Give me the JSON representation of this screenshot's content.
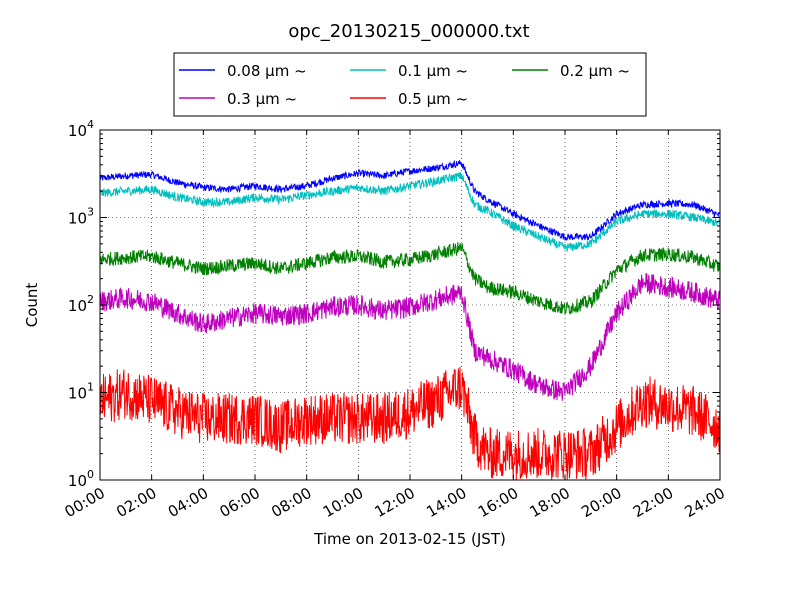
{
  "chart_data": {
    "type": "line",
    "title": "opc_20130215_000000.txt",
    "xlabel": "Time on 2013-02-15 (JST)",
    "ylabel": "Count",
    "y_scale": "log",
    "ylim": [
      1,
      10000
    ],
    "xlim": [
      0,
      24
    ],
    "x_unit": "hours",
    "grid": true,
    "legend_position": "top",
    "x_ticks": [
      {
        "value": 0,
        "label": "00:00"
      },
      {
        "value": 2,
        "label": "02:00"
      },
      {
        "value": 4,
        "label": "04:00"
      },
      {
        "value": 6,
        "label": "06:00"
      },
      {
        "value": 8,
        "label": "08:00"
      },
      {
        "value": 10,
        "label": "10:00"
      },
      {
        "value": 12,
        "label": "12:00"
      },
      {
        "value": 14,
        "label": "14:00"
      },
      {
        "value": 16,
        "label": "16:00"
      },
      {
        "value": 18,
        "label": "18:00"
      },
      {
        "value": 20,
        "label": "20:00"
      },
      {
        "value": 22,
        "label": "22:00"
      },
      {
        "value": 24,
        "label": "24:00"
      }
    ],
    "y_ticks": [
      {
        "value": 1,
        "base": "10",
        "exp": "0"
      },
      {
        "value": 10,
        "base": "10",
        "exp": "1"
      },
      {
        "value": 100,
        "base": "10",
        "exp": "2"
      },
      {
        "value": 1000,
        "base": "10",
        "exp": "3"
      },
      {
        "value": 10000,
        "base": "10",
        "exp": "4"
      }
    ],
    "x": [
      0,
      1,
      2,
      3,
      4,
      5,
      6,
      7,
      8,
      9,
      10,
      11,
      12,
      13,
      14,
      14.5,
      15,
      16,
      17,
      18,
      19,
      20,
      21,
      22,
      23,
      24
    ],
    "series": [
      {
        "name": "0.08 μm ~",
        "color": "#0000ff",
        "noise": 0.04,
        "values": [
          2800,
          3000,
          3100,
          2500,
          2200,
          2100,
          2300,
          2100,
          2300,
          2800,
          3200,
          3000,
          3400,
          3700,
          4200,
          2000,
          1600,
          1100,
          800,
          600,
          600,
          1100,
          1400,
          1450,
          1400,
          1050
        ]
      },
      {
        "name": "0.1 μm ~",
        "color": "#00bfbf",
        "noise": 0.05,
        "values": [
          1900,
          2000,
          2100,
          1700,
          1500,
          1500,
          1700,
          1600,
          1800,
          2000,
          2200,
          2000,
          2300,
          2600,
          3000,
          1400,
          1200,
          800,
          600,
          450,
          500,
          900,
          1100,
          1100,
          1000,
          850
        ]
      },
      {
        "name": "0.2 μm ~",
        "color": "#008000",
        "noise": 0.08,
        "values": [
          330,
          350,
          360,
          300,
          260,
          280,
          300,
          260,
          300,
          350,
          360,
          310,
          330,
          380,
          450,
          200,
          160,
          140,
          110,
          90,
          110,
          250,
          370,
          380,
          350,
          270
        ]
      },
      {
        "name": "0.3 μm ~",
        "color": "#bf00bf",
        "noise": 0.12,
        "values": [
          110,
          120,
          110,
          80,
          60,
          70,
          80,
          75,
          80,
          95,
          100,
          85,
          95,
          115,
          140,
          30,
          25,
          18,
          12,
          10,
          20,
          80,
          180,
          160,
          140,
          110
        ]
      },
      {
        "name": "0.5 μm ~",
        "color": "#ff0000",
        "noise": 0.3,
        "values": [
          8,
          10,
          8,
          6,
          5,
          5,
          5,
          4,
          5,
          5,
          5,
          5,
          6,
          8,
          12,
          3,
          2,
          2,
          2,
          2,
          2,
          4,
          8,
          7,
          6,
          4
        ]
      }
    ]
  }
}
